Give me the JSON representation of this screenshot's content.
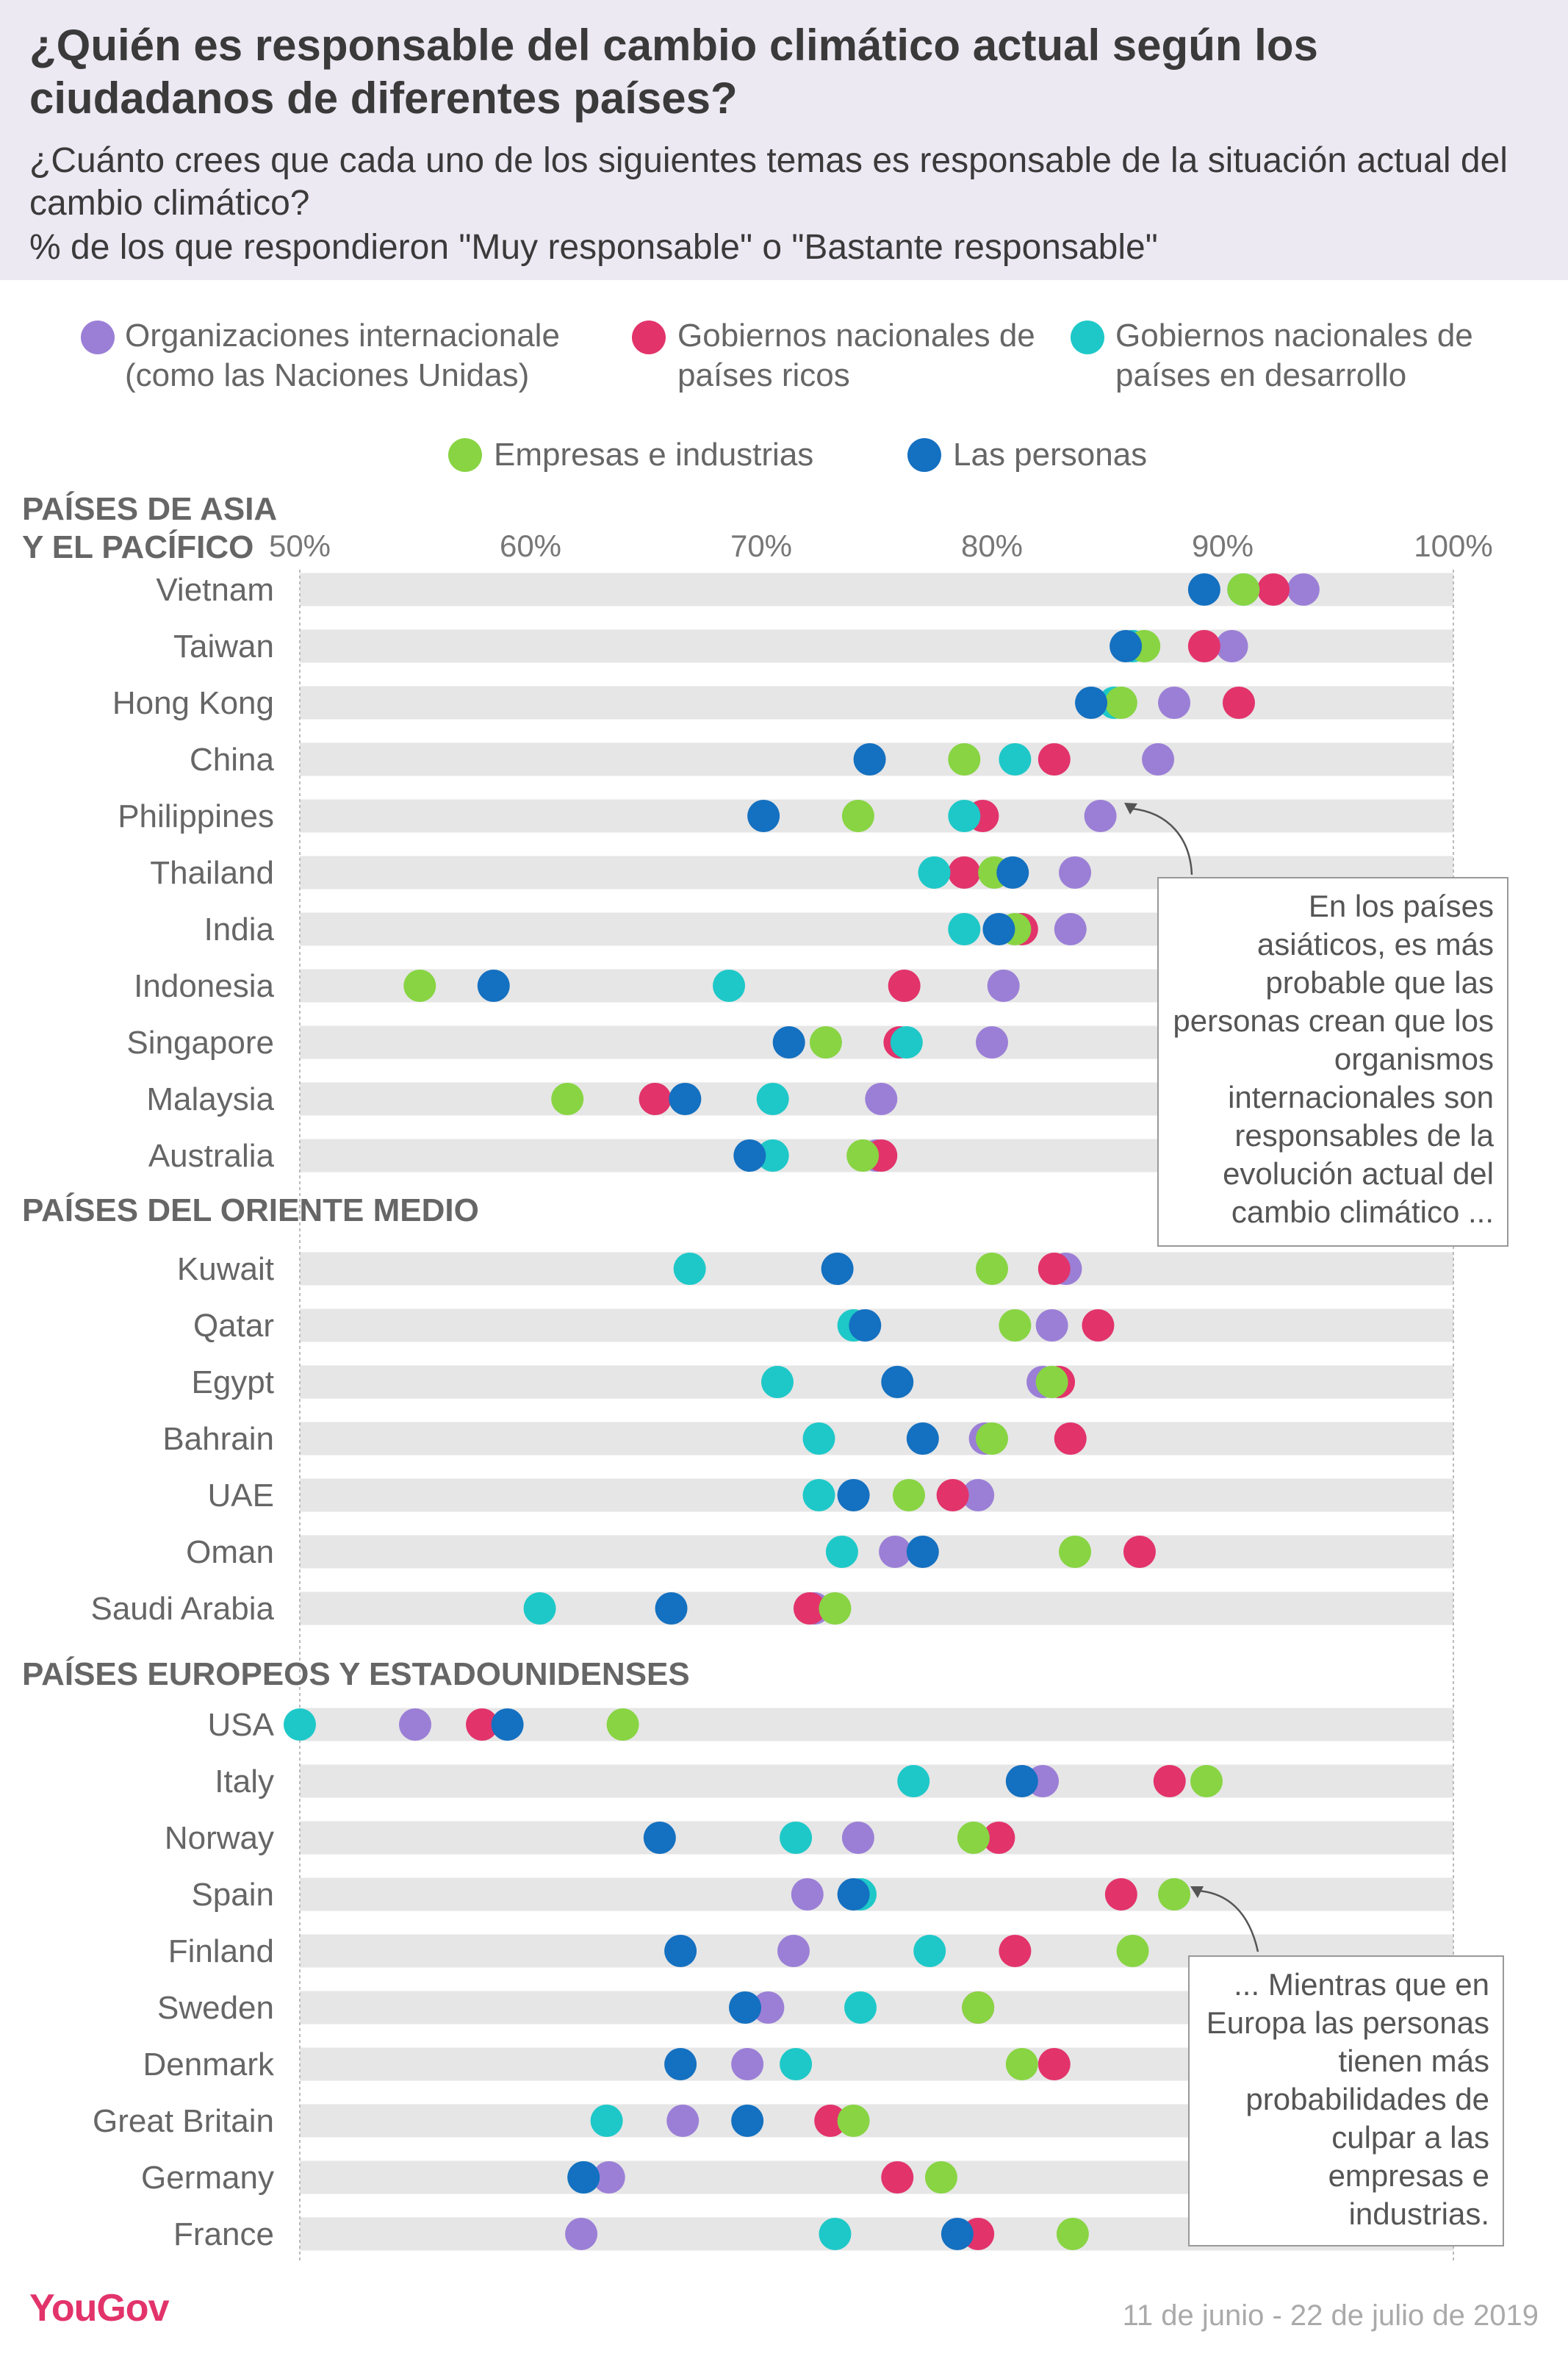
{
  "header": {
    "title": "¿Quién es responsable del cambio climático actual según los ciudadanos de diferentes países?",
    "subtitle": "¿Cuánto crees que cada uno de los siguientes temas es responsable de la situación actual del cambio climático?",
    "subtitle2": "% de los que respondieron \"Muy responsable\" o \"Bastante responsable\""
  },
  "legend": [
    {
      "label": "Organizaciones internacionale (como las Naciones Unidas)",
      "color": "#9b7fd6"
    },
    {
      "label": "Gobiernos nacionales de países ricos",
      "color": "#e2336b"
    },
    {
      "label": "Gobiernos nacionales de países en desarrollo",
      "color": "#1ec8c8"
    },
    {
      "label": "Empresas e industrias",
      "color": "#88d443"
    },
    {
      "label": "Las personas",
      "color": "#1470c0"
    }
  ],
  "notes": {
    "asia": "En los países asiáticos, es más probable que las personas crean que los organismos internacionales son responsables de la evolución actual del cambio climático ...",
    "europe": "... Mientras que en Europa las personas tienen más probabilidades de culpar a las empresas e industrias."
  },
  "footer": {
    "brand": "YouGov",
    "date": "11 de junio - 22 de julio de 2019"
  },
  "chart_data": {
    "type": "scatter",
    "xlim": [
      50,
      100
    ],
    "xticks": [
      "50%",
      "60%",
      "70%",
      "80%",
      "90%",
      "100%"
    ],
    "series": [
      {
        "name": "Organizaciones internacionale (como las Naciones Unidas)",
        "color": "#9b7fd6"
      },
      {
        "name": "Gobiernos nacionales de países ricos",
        "color": "#e2336b"
      },
      {
        "name": "Gobiernos nacionales de países en desarrollo",
        "color": "#1ec8c8"
      },
      {
        "name": "Empresas e industrias",
        "color": "#88d443"
      },
      {
        "name": "Las personas",
        "color": "#1470c0"
      }
    ],
    "groups": [
      {
        "name": "PAÍSES DE ASIA Y EL PACÍFICO",
        "rows": [
          {
            "country": "Vietnam",
            "values": [
              93.5,
              92.2,
              90.9,
              90.9,
              89.2
            ]
          },
          {
            "country": "Taiwan",
            "values": [
              90.4,
              89.2,
              86.1,
              86.6,
              85.8
            ]
          },
          {
            "country": "Hong Kong",
            "values": [
              87.9,
              90.7,
              85.3,
              85.6,
              84.3
            ]
          },
          {
            "country": "China",
            "values": [
              87.2,
              82.7,
              81.0,
              78.8,
              74.7
            ]
          },
          {
            "country": "Philippines",
            "values": [
              84.7,
              79.6,
              78.8,
              74.2,
              70.1
            ]
          },
          {
            "country": "Thailand",
            "values": [
              83.6,
              78.8,
              77.5,
              80.1,
              80.9
            ]
          },
          {
            "country": "India",
            "values": [
              83.4,
              81.3,
              78.8,
              81.0,
              80.3
            ]
          },
          {
            "country": "Indonesia",
            "values": [
              80.5,
              76.2,
              68.6,
              55.2,
              58.4
            ]
          },
          {
            "country": "Singapore",
            "values": [
              80.0,
              76.0,
              76.3,
              72.8,
              71.2
            ]
          },
          {
            "country": "Malaysia",
            "values": [
              75.2,
              65.4,
              70.5,
              61.6,
              66.7
            ]
          },
          {
            "country": "Australia",
            "values": [
              75.0,
              75.2,
              70.5,
              74.4,
              69.5
            ]
          }
        ]
      },
      {
        "name": "PAÍSES DEL ORIENTE MEDIO",
        "rows": [
          {
            "country": "Kuwait",
            "values": [
              83.2,
              82.7,
              66.9,
              80.0,
              73.3
            ]
          },
          {
            "country": "Qatar",
            "values": [
              82.6,
              84.6,
              74.0,
              81.0,
              74.5
            ]
          },
          {
            "country": "Egypt",
            "values": [
              82.2,
              82.9,
              70.7,
              82.6,
              75.9
            ]
          },
          {
            "country": "Bahrain",
            "values": [
              79.7,
              83.4,
              72.5,
              80.0,
              77.0
            ]
          },
          {
            "country": "UAE",
            "values": [
              79.4,
              78.3,
              72.5,
              76.4,
              74.0
            ]
          },
          {
            "country": "Oman",
            "values": [
              75.8,
              86.4,
              73.5,
              83.6,
              77.0
            ]
          },
          {
            "country": "Saudi Arabia",
            "values": [
              72.3,
              72.1,
              60.4,
              73.2,
              66.1
            ]
          }
        ]
      },
      {
        "name": "PAÍSES EUROPEOS Y ESTADOUNIDENSES",
        "rows": [
          {
            "country": "USA",
            "values": [
              55.0,
              57.9,
              50.0,
              64.0,
              59.0
            ]
          },
          {
            "country": "Italy",
            "values": [
              82.2,
              87.7,
              76.6,
              89.3,
              81.3
            ]
          },
          {
            "country": "Norway",
            "values": [
              74.2,
              80.3,
              71.5,
              79.2,
              65.6
            ]
          },
          {
            "country": "Spain",
            "values": [
              72.0,
              85.6,
              74.3,
              87.9,
              74.0
            ]
          },
          {
            "country": "Finland",
            "values": [
              71.4,
              81.0,
              77.3,
              86.1,
              66.5
            ]
          },
          {
            "country": "Sweden",
            "values": [
              70.3,
              79.4,
              74.3,
              79.4,
              69.3
            ]
          },
          {
            "country": "Denmark",
            "values": [
              69.4,
              82.7,
              71.5,
              81.3,
              66.5
            ]
          },
          {
            "country": "Great Britain",
            "values": [
              66.6,
              73.0,
              63.3,
              74.0,
              69.4
            ]
          },
          {
            "country": "Germany",
            "values": [
              63.4,
              75.9,
              62.3,
              77.8,
              62.3
            ]
          },
          {
            "country": "France",
            "values": [
              62.2,
              79.4,
              73.2,
              83.5,
              78.5
            ]
          }
        ]
      }
    ]
  }
}
